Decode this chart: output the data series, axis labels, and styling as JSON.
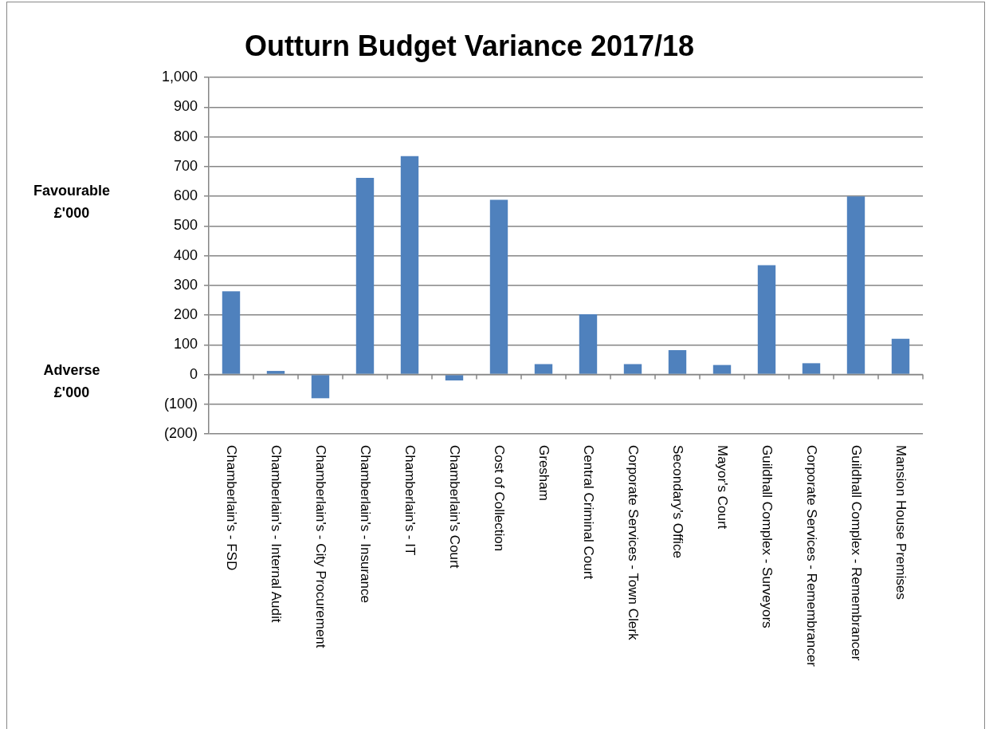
{
  "chart_data": {
    "type": "bar",
    "title": "Outturn Budget Variance 2017/18",
    "ylabel": "Favourable £'000",
    "annotations": [
      "Adverse £'000"
    ],
    "categories": [
      "Chamberlain's - FSD",
      "Chamberlain's - Internal Audit",
      "Chamberlain's - City Procurement",
      "Chamberlain's - Insurance",
      "Chamberlain's - IT",
      "Chamberlain's Court",
      "Cost of Collection",
      "Gresham",
      "Central Criminal Court",
      "Corporate Services - Town Clerk",
      "Secondary's Office",
      "Mayor's Court",
      "Guildhall Complex - Surveyors",
      "Corporate Services - Remembrancer",
      "Guildhall Complex - Remembrancer",
      "Mansion House Premises"
    ],
    "values": [
      280,
      12,
      -80,
      662,
      735,
      -20,
      588,
      35,
      203,
      35,
      82,
      32,
      368,
      38,
      600,
      120
    ],
    "color": "#4f81bd",
    "ylim": [
      -200,
      1000
    ],
    "yticks": [
      {
        "value": -200,
        "label": "(200)"
      },
      {
        "value": -100,
        "label": "(100)"
      },
      0,
      100,
      200,
      300,
      400,
      500,
      600,
      700,
      800,
      900,
      {
        "value": 1000,
        "label": "1,000"
      }
    ],
    "grid": "y",
    "legend": false
  }
}
